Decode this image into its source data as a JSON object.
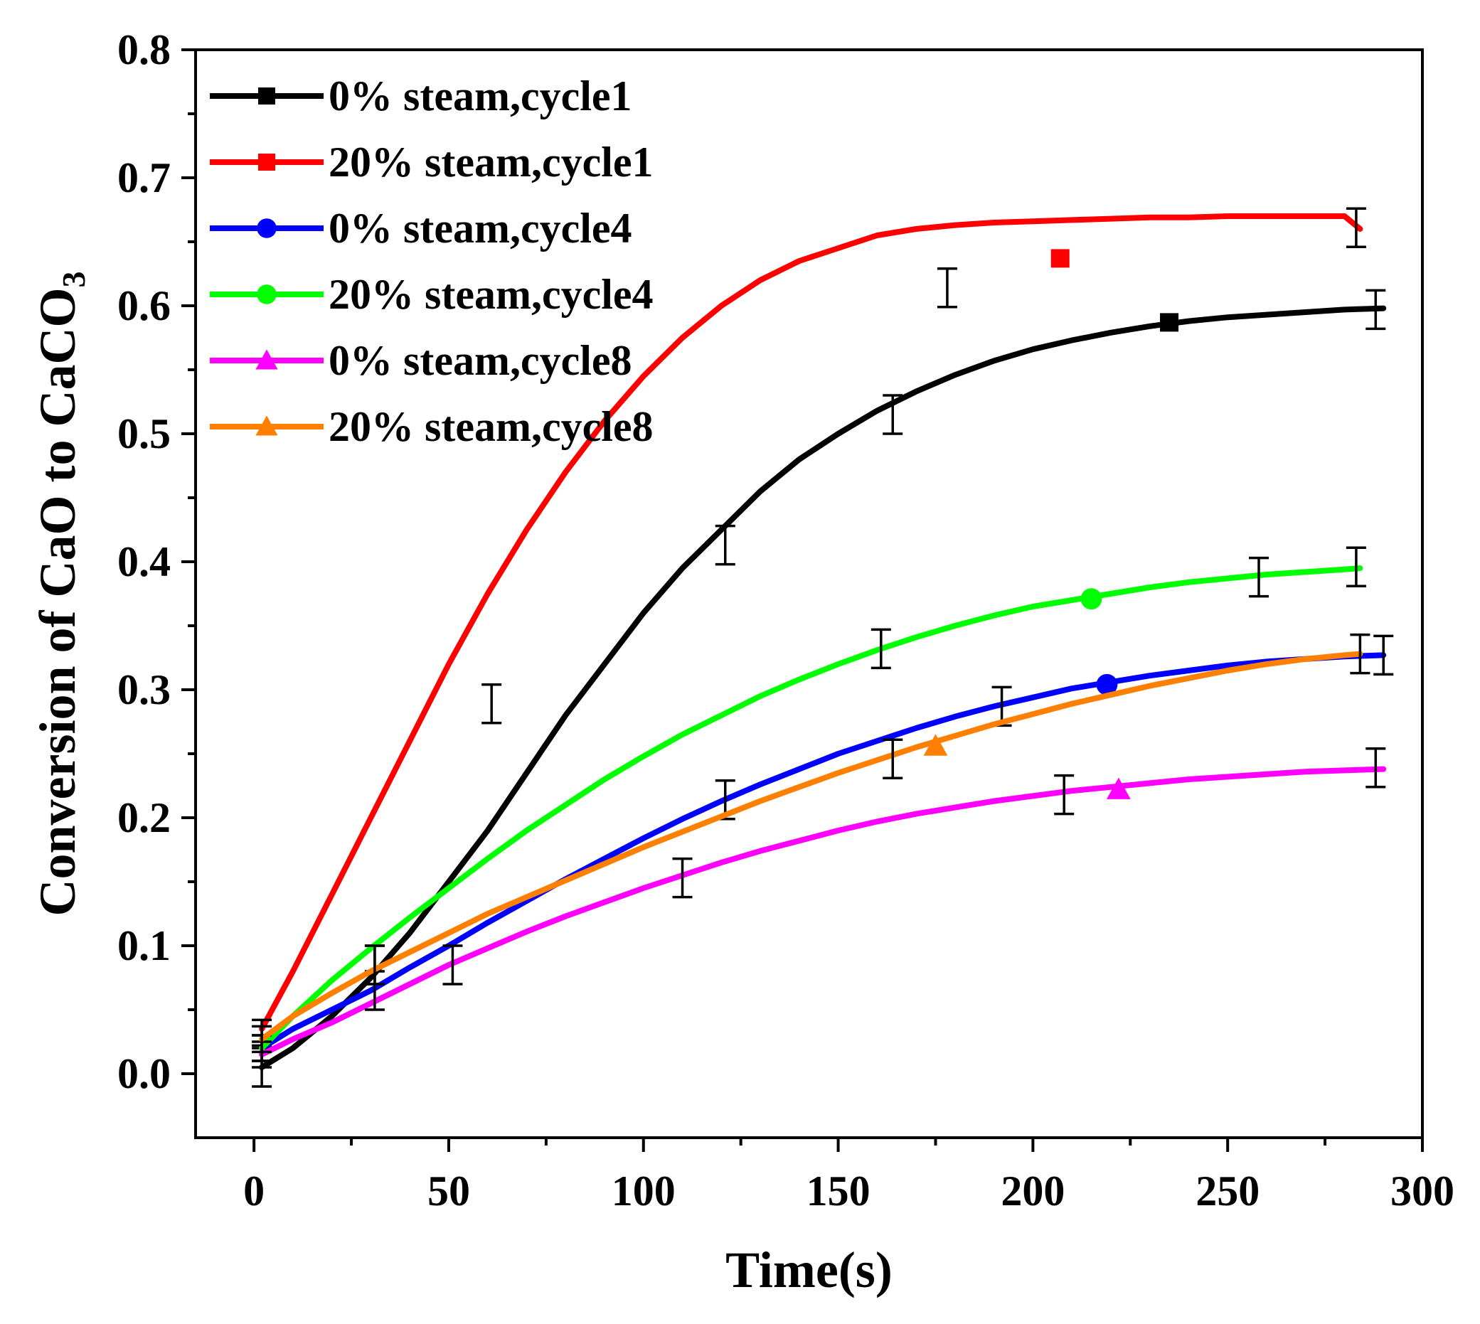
{
  "chart_data": {
    "type": "line",
    "title": "",
    "xlabel": "Time(s)",
    "ylabel": {
      "main": "Conversion of CaO to CaCO",
      "subscript": "3"
    },
    "xlim": [
      -15,
      300
    ],
    "ylim": [
      -0.05,
      0.8
    ],
    "xticks": [
      0,
      50,
      100,
      150,
      200,
      250,
      300
    ],
    "xtick_labels": [
      "0",
      "50",
      "100",
      "150",
      "200",
      "250",
      "300"
    ],
    "yticks": [
      0.0,
      0.1,
      0.2,
      0.3,
      0.4,
      0.5,
      0.6,
      0.7,
      0.8
    ],
    "ytick_labels": [
      "0.0",
      "0.1",
      "0.2",
      "0.3",
      "0.4",
      "0.5",
      "0.6",
      "0.7",
      "0.8"
    ],
    "legend_position": "top-left",
    "grid": false,
    "series": [
      {
        "name": "0% steam,cycle1",
        "color": "#000000",
        "marker": "square",
        "curve": [
          [
            2,
            0.005
          ],
          [
            10,
            0.02
          ],
          [
            20,
            0.045
          ],
          [
            30,
            0.075
          ],
          [
            40,
            0.11
          ],
          [
            50,
            0.15
          ],
          [
            60,
            0.19
          ],
          [
            70,
            0.235
          ],
          [
            80,
            0.28
          ],
          [
            90,
            0.32
          ],
          [
            100,
            0.36
          ],
          [
            110,
            0.395
          ],
          [
            120,
            0.425
          ],
          [
            130,
            0.455
          ],
          [
            140,
            0.48
          ],
          [
            150,
            0.5
          ],
          [
            160,
            0.518
          ],
          [
            170,
            0.533
          ],
          [
            180,
            0.546
          ],
          [
            190,
            0.557
          ],
          [
            200,
            0.566
          ],
          [
            210,
            0.573
          ],
          [
            220,
            0.579
          ],
          [
            230,
            0.584
          ],
          [
            240,
            0.588
          ],
          [
            250,
            0.591
          ],
          [
            260,
            0.593
          ],
          [
            270,
            0.595
          ],
          [
            280,
            0.597
          ],
          [
            290,
            0.598
          ]
        ],
        "markers": [
          [
            235,
            0.587
          ]
        ],
        "error_bars": [
          [
            2,
            0.005,
            0.015
          ],
          [
            31,
            0.085,
            0.015
          ],
          [
            121,
            0.413,
            0.015
          ],
          [
            164,
            0.515,
            0.015
          ],
          [
            288,
            0.597,
            0.015
          ]
        ]
      },
      {
        "name": "20% steam,cycle1",
        "color": "#ff0000",
        "marker": "square",
        "curve": [
          [
            2,
            0.035
          ],
          [
            10,
            0.08
          ],
          [
            20,
            0.14
          ],
          [
            30,
            0.2
          ],
          [
            40,
            0.26
          ],
          [
            50,
            0.32
          ],
          [
            60,
            0.375
          ],
          [
            70,
            0.425
          ],
          [
            80,
            0.47
          ],
          [
            90,
            0.51
          ],
          [
            100,
            0.545
          ],
          [
            110,
            0.575
          ],
          [
            120,
            0.6
          ],
          [
            130,
            0.62
          ],
          [
            140,
            0.635
          ],
          [
            150,
            0.645
          ],
          [
            160,
            0.655
          ],
          [
            170,
            0.66
          ],
          [
            180,
            0.663
          ],
          [
            190,
            0.665
          ],
          [
            200,
            0.666
          ],
          [
            210,
            0.667
          ],
          [
            220,
            0.668
          ],
          [
            230,
            0.669
          ],
          [
            240,
            0.669
          ],
          [
            250,
            0.67
          ],
          [
            260,
            0.67
          ],
          [
            270,
            0.67
          ],
          [
            280,
            0.67
          ],
          [
            284,
            0.66
          ]
        ],
        "markers": [
          [
            207,
            0.637
          ]
        ],
        "error_bars": [
          [
            2,
            0.032,
            0.01
          ],
          [
            61,
            0.289,
            0.015
          ],
          [
            178,
            0.614,
            0.015
          ],
          [
            283,
            0.661,
            0.015
          ]
        ]
      },
      {
        "name": "0% steam,cycle4",
        "color": "#0000ff",
        "marker": "circle",
        "curve": [
          [
            2,
            0.02
          ],
          [
            10,
            0.035
          ],
          [
            20,
            0.05
          ],
          [
            30,
            0.065
          ],
          [
            40,
            0.083
          ],
          [
            50,
            0.1
          ],
          [
            60,
            0.118
          ],
          [
            70,
            0.135
          ],
          [
            80,
            0.152
          ],
          [
            90,
            0.168
          ],
          [
            100,
            0.184
          ],
          [
            110,
            0.199
          ],
          [
            120,
            0.213
          ],
          [
            130,
            0.226
          ],
          [
            140,
            0.238
          ],
          [
            150,
            0.25
          ],
          [
            160,
            0.26
          ],
          [
            170,
            0.27
          ],
          [
            180,
            0.279
          ],
          [
            190,
            0.287
          ],
          [
            200,
            0.294
          ],
          [
            210,
            0.301
          ],
          [
            220,
            0.306
          ],
          [
            230,
            0.311
          ],
          [
            240,
            0.315
          ],
          [
            250,
            0.319
          ],
          [
            260,
            0.322
          ],
          [
            270,
            0.324
          ],
          [
            280,
            0.326
          ],
          [
            290,
            0.327
          ]
        ],
        "markers": [
          [
            219,
            0.304
          ]
        ],
        "error_bars": [
          [
            2,
            0.02,
            0.01
          ],
          [
            121,
            0.214,
            0.015
          ],
          [
            192,
            0.287,
            0.015
          ],
          [
            290,
            0.327,
            0.015
          ]
        ]
      },
      {
        "name": "20% steam,cycle4",
        "color": "#00ff00",
        "marker": "circle",
        "curve": [
          [
            2,
            0.02
          ],
          [
            10,
            0.045
          ],
          [
            20,
            0.073
          ],
          [
            30,
            0.098
          ],
          [
            40,
            0.122
          ],
          [
            50,
            0.145
          ],
          [
            60,
            0.168
          ],
          [
            70,
            0.19
          ],
          [
            80,
            0.21
          ],
          [
            90,
            0.23
          ],
          [
            100,
            0.248
          ],
          [
            110,
            0.265
          ],
          [
            120,
            0.28
          ],
          [
            130,
            0.295
          ],
          [
            140,
            0.308
          ],
          [
            150,
            0.32
          ],
          [
            160,
            0.331
          ],
          [
            170,
            0.341
          ],
          [
            180,
            0.35
          ],
          [
            190,
            0.358
          ],
          [
            200,
            0.365
          ],
          [
            210,
            0.37
          ],
          [
            220,
            0.375
          ],
          [
            230,
            0.38
          ],
          [
            240,
            0.384
          ],
          [
            250,
            0.387
          ],
          [
            260,
            0.39
          ],
          [
            270,
            0.392
          ],
          [
            280,
            0.394
          ],
          [
            284,
            0.395
          ]
        ],
        "markers": [
          [
            215,
            0.371
          ]
        ],
        "error_bars": [
          [
            2,
            0.02,
            0.01
          ],
          [
            161,
            0.332,
            0.015
          ],
          [
            258,
            0.388,
            0.015
          ],
          [
            283,
            0.396,
            0.015
          ]
        ]
      },
      {
        "name": "0% steam,cycle8",
        "color": "#ff00ff",
        "marker": "triangle",
        "curve": [
          [
            2,
            0.015
          ],
          [
            10,
            0.027
          ],
          [
            20,
            0.04
          ],
          [
            30,
            0.055
          ],
          [
            40,
            0.07
          ],
          [
            50,
            0.085
          ],
          [
            60,
            0.098
          ],
          [
            70,
            0.111
          ],
          [
            80,
            0.123
          ],
          [
            90,
            0.134
          ],
          [
            100,
            0.145
          ],
          [
            110,
            0.155
          ],
          [
            120,
            0.165
          ],
          [
            130,
            0.174
          ],
          [
            140,
            0.182
          ],
          [
            150,
            0.19
          ],
          [
            160,
            0.197
          ],
          [
            170,
            0.203
          ],
          [
            180,
            0.208
          ],
          [
            190,
            0.213
          ],
          [
            200,
            0.217
          ],
          [
            210,
            0.221
          ],
          [
            220,
            0.224
          ],
          [
            230,
            0.227
          ],
          [
            240,
            0.23
          ],
          [
            250,
            0.232
          ],
          [
            260,
            0.234
          ],
          [
            270,
            0.236
          ],
          [
            280,
            0.237
          ],
          [
            290,
            0.238
          ]
        ],
        "markers": [
          [
            222,
            0.222
          ]
        ],
        "error_bars": [
          [
            2,
            0.015,
            0.01
          ],
          [
            31,
            0.065,
            0.015
          ],
          [
            51,
            0.085,
            0.015
          ],
          [
            110,
            0.153,
            0.015
          ],
          [
            208,
            0.218,
            0.015
          ],
          [
            288,
            0.239,
            0.015
          ]
        ]
      },
      {
        "name": "20% steam,cycle8",
        "color": "#ff8000",
        "marker": "triangle",
        "curve": [
          [
            2,
            0.027
          ],
          [
            10,
            0.045
          ],
          [
            20,
            0.063
          ],
          [
            30,
            0.08
          ],
          [
            40,
            0.095
          ],
          [
            50,
            0.11
          ],
          [
            60,
            0.125
          ],
          [
            70,
            0.138
          ],
          [
            80,
            0.151
          ],
          [
            90,
            0.164
          ],
          [
            100,
            0.177
          ],
          [
            110,
            0.189
          ],
          [
            120,
            0.201
          ],
          [
            130,
            0.213
          ],
          [
            140,
            0.224
          ],
          [
            150,
            0.235
          ],
          [
            160,
            0.245
          ],
          [
            170,
            0.255
          ],
          [
            180,
            0.264
          ],
          [
            190,
            0.273
          ],
          [
            200,
            0.281
          ],
          [
            210,
            0.289
          ],
          [
            220,
            0.296
          ],
          [
            230,
            0.303
          ],
          [
            240,
            0.309
          ],
          [
            250,
            0.315
          ],
          [
            260,
            0.32
          ],
          [
            270,
            0.324
          ],
          [
            280,
            0.327
          ],
          [
            284,
            0.328
          ]
        ],
        "markers": [
          [
            175,
            0.256
          ]
        ],
        "error_bars": [
          [
            2,
            0.027,
            0.01
          ],
          [
            31,
            0.085,
            0.015
          ],
          [
            164,
            0.246,
            0.015
          ],
          [
            284,
            0.328,
            0.015
          ]
        ]
      }
    ]
  }
}
